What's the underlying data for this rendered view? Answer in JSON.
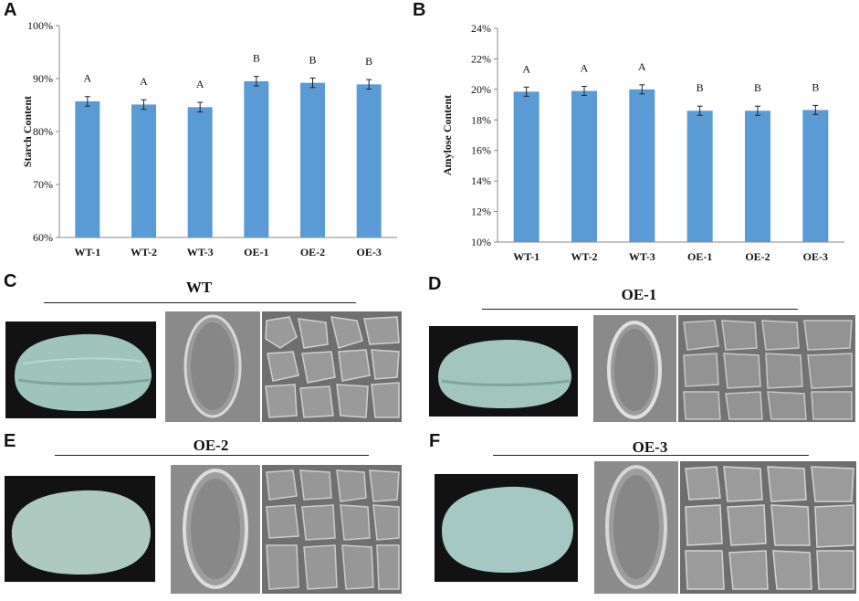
{
  "panels": {
    "A": "A",
    "B": "B",
    "C": "C",
    "D": "D",
    "E": "E",
    "F": "F"
  },
  "chart_data": [
    {
      "type": "bar",
      "panel": "A",
      "categories": [
        "WT-1",
        "WT-2",
        "WT-3",
        "OE-1",
        "OE-2",
        "OE-3"
      ],
      "values": [
        85.7,
        85.1,
        84.6,
        89.5,
        89.2,
        88.9
      ],
      "errors": [
        0.9,
        0.9,
        0.9,
        0.9,
        0.9,
        0.9
      ],
      "annotations": [
        "A",
        "A",
        "A",
        "B",
        "B",
        "B"
      ],
      "title": "",
      "xlabel": "",
      "ylabel": "Starch Content",
      "ylim": [
        60,
        100
      ],
      "yticks": [
        "60%",
        "70%",
        "80%",
        "90%",
        "100%"
      ],
      "ytick_values": [
        60,
        70,
        80,
        90,
        100
      ],
      "bar_color": "#5b9bd5",
      "grid": false,
      "legend": "none"
    },
    {
      "type": "bar",
      "panel": "B",
      "categories": [
        "WT-1",
        "WT-2",
        "WT-3",
        "OE-1",
        "OE-2",
        "OE-3"
      ],
      "values": [
        19.85,
        19.9,
        20.0,
        18.6,
        18.6,
        18.65
      ],
      "errors": [
        0.3,
        0.3,
        0.3,
        0.3,
        0.3,
        0.3
      ],
      "annotations": [
        "A",
        "A",
        "A",
        "B",
        "B",
        "B"
      ],
      "title": "",
      "xlabel": "",
      "ylabel": "Amylose Content",
      "ylim": [
        10,
        24
      ],
      "yticks": [
        "10%",
        "12%",
        "14%",
        "16%",
        "18%",
        "20%",
        "22%",
        "24%"
      ],
      "ytick_values": [
        10,
        12,
        14,
        16,
        18,
        20,
        22,
        24
      ],
      "bar_color": "#5b9bd5",
      "grid": false,
      "legend": "none"
    }
  ],
  "image_groups": [
    {
      "panel": "C",
      "title": "WT"
    },
    {
      "panel": "D",
      "title": "OE-1"
    },
    {
      "panel": "E",
      "title": "OE-2"
    },
    {
      "panel": "F",
      "title": "OE-3"
    }
  ],
  "colors": {
    "bar": "#5b9bd5",
    "grain_photo_bg": "#111111",
    "grain": "#a9c9c0",
    "sem": "#8e8e8e"
  }
}
